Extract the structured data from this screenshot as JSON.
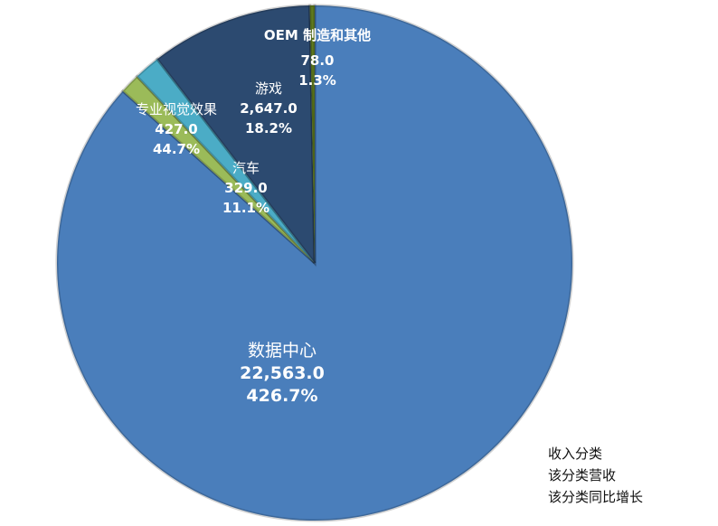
{
  "chart_data": {
    "type": "pie",
    "start_angle": "12 o'clock",
    "direction": "clockwise",
    "slices": [
      {
        "name": "数据中心",
        "value": 22563.0,
        "value_label": "22,563.0",
        "growth_label": "426.7%",
        "color": "#4a7ebb"
      },
      {
        "name": "汽车",
        "value": 329.0,
        "value_label": "329.0",
        "growth_label": "11.1%",
        "color": "#9bbb59"
      },
      {
        "name": "专业视觉效果",
        "value": 427.0,
        "value_label": "427.0",
        "growth_label": "44.7%",
        "color": "#4bacc6"
      },
      {
        "name": "游戏",
        "value": 2647.0,
        "value_label": "2,647.0",
        "growth_label": "18.2%",
        "color": "#2c4a70"
      },
      {
        "name": "OEM 制造和其他",
        "value": 78.0,
        "value_label": "78.0",
        "growth_label": "1.3%",
        "color": "#5f7a1e"
      }
    ],
    "legend_note": [
      "收入分类",
      "该分类营收",
      "该分类同比增长"
    ]
  }
}
